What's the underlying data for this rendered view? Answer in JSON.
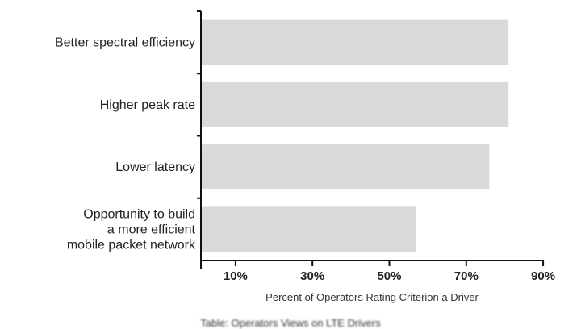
{
  "chart_data": {
    "type": "bar",
    "orientation": "horizontal",
    "categories": [
      [
        "Better spectral efficiency"
      ],
      [
        "Higher peak rate"
      ],
      [
        "Lower latency"
      ],
      [
        "Opportunity to build",
        "a more efficient",
        "mobile packet network"
      ]
    ],
    "values": [
      81,
      81,
      76,
      57
    ],
    "xlim": [
      1,
      90
    ],
    "xticks": [
      10,
      30,
      50,
      70,
      90
    ],
    "xtick_labels": [
      "10%",
      "30%",
      "50%",
      "70%",
      "90%"
    ],
    "xlabel": "Percent of Operators Rating Criterion a Driver",
    "ylabel": "",
    "title": "",
    "bar_color": "#d9d9d9",
    "grid": false,
    "legend": "none"
  },
  "caption": "Table: Operators Views on LTE Drivers"
}
